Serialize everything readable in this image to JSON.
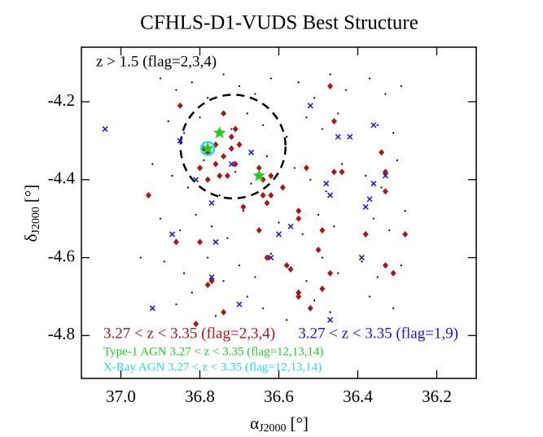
{
  "chart_data": {
    "type": "scatter",
    "title": "CFHLS-D1-VUDS Best Structure",
    "xlabel": {
      "symbol": "α",
      "subscript": "J2000",
      "unit": "[°]"
    },
    "ylabel": {
      "symbol": "δ",
      "subscript": "J2000",
      "unit": "[°]"
    },
    "xlim": [
      37.1,
      36.1
    ],
    "ylim": [
      -4.91,
      -4.06
    ],
    "xticks": [
      {
        "value": 37,
        "label": "37.0"
      },
      36.8,
      36.6,
      36.4,
      36.2
    ],
    "yticks": [
      -4.2,
      -4.4,
      -4.6,
      -4.8
    ],
    "circle": {
      "x": 36.716,
      "y": -4.315,
      "r": 0.133
    },
    "series": [
      {
        "name": "z > 1.5 (flag=2,3,4)",
        "color": "#000000",
        "marker": "dot",
        "x": [
          36.9,
          36.86,
          36.82,
          36.78,
          36.74,
          36.7,
          36.66,
          36.62,
          36.55,
          36.51,
          36.47,
          36.43,
          36.37,
          36.33,
          36.29,
          36.88,
          36.84,
          36.8,
          36.72,
          36.68,
          36.64,
          36.58,
          36.53,
          36.49,
          36.45,
          36.35,
          36.31,
          36.92,
          36.87,
          36.83,
          36.79,
          36.75,
          36.71,
          36.67,
          36.63,
          36.56,
          36.52,
          36.48,
          36.44,
          36.38,
          36.34,
          36.3,
          36.9,
          36.85,
          36.81,
          36.77,
          36.73,
          36.69,
          36.6,
          36.54,
          36.5,
          36.46,
          36.36,
          36.32,
          36.28,
          36.89,
          36.84,
          36.78,
          36.74,
          36.7,
          36.66,
          36.62,
          36.57,
          36.53,
          36.49,
          36.45,
          36.39,
          36.35,
          36.29,
          36.95,
          36.86,
          36.82,
          36.76,
          36.68,
          36.64,
          36.58,
          36.51,
          36.47,
          36.37,
          36.31
        ],
        "y": [
          -4.14,
          -4.17,
          -4.15,
          -4.19,
          -4.13,
          -4.16,
          -4.18,
          -4.14,
          -4.15,
          -4.19,
          -4.13,
          -4.17,
          -4.14,
          -4.18,
          -4.16,
          -4.25,
          -4.28,
          -4.24,
          -4.27,
          -4.23,
          -4.26,
          -4.29,
          -4.24,
          -4.27,
          -4.23,
          -4.26,
          -4.28,
          -4.36,
          -4.39,
          -4.42,
          -4.35,
          -4.44,
          -4.38,
          -4.41,
          -4.34,
          -4.37,
          -4.4,
          -4.43,
          -4.36,
          -4.39,
          -4.42,
          -4.35,
          -4.5,
          -4.53,
          -4.49,
          -4.52,
          -4.55,
          -4.48,
          -4.51,
          -4.54,
          -4.49,
          -4.52,
          -4.5,
          -4.53,
          -4.48,
          -4.61,
          -4.64,
          -4.6,
          -4.66,
          -4.62,
          -4.65,
          -4.59,
          -4.63,
          -4.66,
          -4.6,
          -4.64,
          -4.61,
          -4.65,
          -4.62,
          -4.6,
          -4.72,
          -4.69,
          -4.75,
          -4.7,
          -4.73,
          -4.76,
          -4.71,
          -4.74,
          -4.7,
          -4.73
        ]
      },
      {
        "name": "3.27 < z < 3.35 (flag=2,3,4)",
        "color": "#b01515",
        "marker": "diamond",
        "x": [
          36.85,
          36.74,
          36.79,
          36.78,
          36.76,
          36.74,
          36.72,
          36.7,
          36.76,
          36.71,
          36.75,
          36.73,
          36.8,
          36.78,
          36.65,
          36.64,
          36.62,
          36.64,
          36.63,
          36.62,
          36.69,
          36.65,
          36.93,
          36.86,
          36.8,
          36.78,
          36.77,
          36.74,
          36.81,
          36.63,
          36.58,
          36.57,
          36.55,
          36.55,
          36.52,
          36.49,
          36.47,
          36.5,
          36.49,
          36.55,
          36.55,
          36.59,
          36.53,
          36.46,
          36.46,
          36.44,
          36.47,
          36.34,
          36.33,
          36.33,
          36.38,
          36.33,
          36.31,
          36.28,
          36.71,
          36.72
        ],
        "y": [
          -4.21,
          -4.23,
          -4.32,
          -4.33,
          -4.31,
          -4.34,
          -4.32,
          -4.31,
          -4.36,
          -4.36,
          -4.39,
          -4.39,
          -4.37,
          -4.4,
          -4.37,
          -4.4,
          -4.39,
          -4.44,
          -4.46,
          -4.44,
          -4.47,
          -4.53,
          -4.44,
          -4.56,
          -4.56,
          -4.67,
          -4.66,
          -4.74,
          -4.77,
          -4.6,
          -4.62,
          -4.63,
          -4.69,
          -4.7,
          -4.73,
          -4.68,
          -4.64,
          -4.58,
          -4.53,
          -4.5,
          -4.48,
          -4.42,
          -4.37,
          -4.25,
          -4.38,
          -4.38,
          -4.16,
          -4.33,
          -4.38,
          -4.43,
          -4.54,
          -4.62,
          -4.64,
          -4.54,
          -4.27,
          -4.29
        ]
      },
      {
        "name": "3.27 < z < 3.35 (flag=1,9)",
        "color": "#1515e0",
        "marker": "cross",
        "x": [
          37.04,
          36.85,
          36.81,
          36.77,
          36.67,
          36.72,
          36.87,
          36.76,
          36.77,
          36.7,
          36.92,
          36.62,
          36.57,
          36.6,
          36.52,
          36.48,
          36.47,
          36.45,
          36.42,
          36.36,
          36.36,
          36.37,
          36.38,
          36.33,
          36.39,
          36.47
        ],
        "y": [
          -4.27,
          -4.3,
          -4.4,
          -4.46,
          -4.33,
          -4.36,
          -4.54,
          -4.56,
          -4.65,
          -4.72,
          -4.73,
          -4.6,
          -4.52,
          -4.54,
          -4.21,
          -4.41,
          -4.44,
          -4.29,
          -4.29,
          -4.26,
          -4.41,
          -4.45,
          -4.47,
          -4.39,
          -4.6,
          -4.76
        ]
      },
      {
        "name": "Type-1 AGN 3.27 < z < 3.35 (flag=12,13,14)",
        "color": "#22cc22",
        "marker": "star",
        "x": [
          36.75,
          36.65,
          36.78
        ],
        "y": [
          -4.28,
          -4.39,
          -4.32
        ]
      },
      {
        "name": "X-Ray AGN 3.27 < z < 3.35 (flag=12,13,14)",
        "color": "#22dddd",
        "marker": "ring",
        "x": [
          36.78
        ],
        "y": [
          -4.32
        ]
      }
    ]
  }
}
